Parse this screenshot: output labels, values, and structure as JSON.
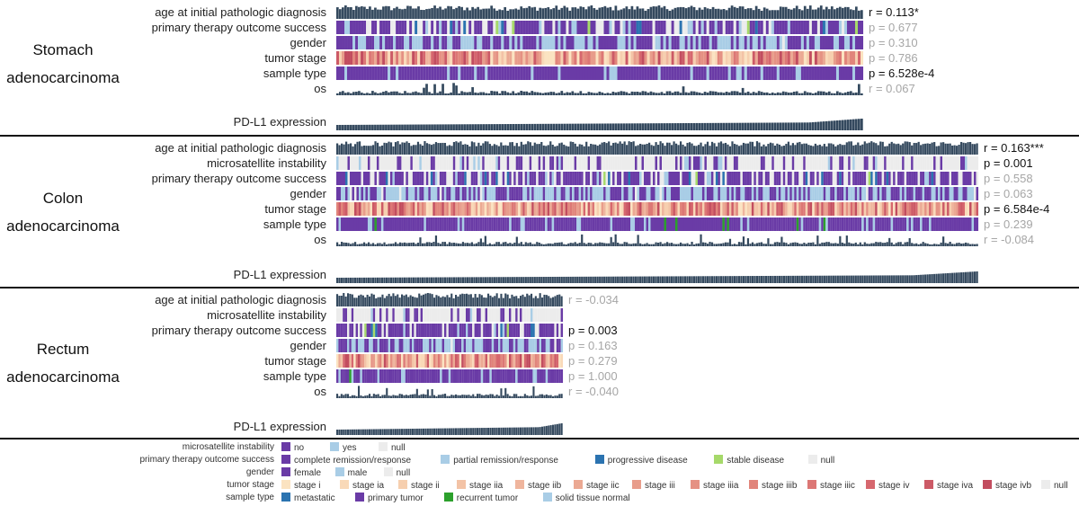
{
  "chart_data": {
    "type": "heatmap",
    "title": "",
    "panels": [
      {
        "cancer": [
          "Stomach",
          "adenocarcinoma"
        ],
        "tracks": [
          {
            "label": "age at initial pathologic diagnosis",
            "kind": "bar",
            "stat": "r = 0.113*",
            "significant": true
          },
          {
            "label": "primary therapy outcome success",
            "kind": "cat",
            "palette": "outcome",
            "stat": "p = 0.677",
            "significant": false
          },
          {
            "label": "gender",
            "kind": "cat",
            "palette": "gender",
            "stat": "p = 0.310",
            "significant": false
          },
          {
            "label": "tumor stage",
            "kind": "cat",
            "palette": "stage",
            "stat": "p = 0.786",
            "significant": false
          },
          {
            "label": "sample type",
            "kind": "cat",
            "palette": "sample",
            "stat": "p = 6.528e-4",
            "significant": true
          },
          {
            "label": "os",
            "kind": "os",
            "stat": "r = 0.067",
            "significant": false
          }
        ],
        "pdl1_label": "PD-L1 expression",
        "n_samples": 195
      },
      {
        "cancer": [
          "Colon",
          "adenocarcinoma"
        ],
        "tracks": [
          {
            "label": "age at initial pathologic diagnosis",
            "kind": "bar",
            "stat": "r = 0.163***",
            "significant": true
          },
          {
            "label": "microsatellite instability",
            "kind": "cat",
            "palette": "msi",
            "stat": "p = 0.001",
            "significant": true
          },
          {
            "label": "primary therapy outcome success",
            "kind": "cat",
            "palette": "outcome",
            "stat": "p = 0.558",
            "significant": false
          },
          {
            "label": "gender",
            "kind": "cat",
            "palette": "gender",
            "stat": "p = 0.063",
            "significant": false
          },
          {
            "label": "tumor stage",
            "kind": "cat",
            "palette": "stage",
            "stat": "p = 6.584e-4",
            "significant": true
          },
          {
            "label": "sample type",
            "kind": "cat",
            "palette": "sample",
            "stat": "p = 0.239",
            "significant": false
          },
          {
            "label": "os",
            "kind": "os",
            "stat": "r = -0.084",
            "significant": false
          }
        ],
        "pdl1_label": "PD-L1 expression",
        "n_samples": 286
      },
      {
        "cancer": [
          "Rectum",
          "adenocarcinoma"
        ],
        "tracks": [
          {
            "label": "age at initial pathologic diagnosis",
            "kind": "bar",
            "stat": "r = -0.034",
            "significant": false
          },
          {
            "label": "microsatellite instability",
            "kind": "cat",
            "palette": "msi",
            "stat": "",
            "significant": false
          },
          {
            "label": "primary therapy outcome success",
            "kind": "cat",
            "palette": "outcome",
            "stat": "p = 0.003",
            "significant": true
          },
          {
            "label": "gender",
            "kind": "cat",
            "palette": "gender",
            "stat": "p = 0.163",
            "significant": false
          },
          {
            "label": "tumor stage",
            "kind": "cat",
            "palette": "stage",
            "stat": "p = 0.279",
            "significant": false
          },
          {
            "label": "sample type",
            "kind": "cat",
            "palette": "sample",
            "stat": "p = 1.000",
            "significant": false
          },
          {
            "label": "os",
            "kind": "os",
            "stat": "r = -0.040",
            "significant": false
          }
        ],
        "pdl1_label": "PD-L1 expression",
        "n_samples": 105
      }
    ],
    "colors": {
      "bar": "#34495e",
      "null": "#ececec",
      "msi": {
        "no": "#6a3ba6",
        "yes": "#a9cde6",
        "null": "#ececec"
      },
      "outcome": {
        "complete remission/response": "#6a3ba6",
        "partial remission/response": "#a9cde6",
        "progressive disease": "#2b73b0",
        "stable disease": "#a6d96a",
        "null": "#ececec"
      },
      "gender": {
        "female": "#6a3ba6",
        "male": "#a9cde6",
        "null": "#ececec"
      },
      "stage": {
        "stage i": "#fbe3c1",
        "stage ia": "#f9d9b8",
        "stage ii": "#f6cfaf",
        "stage iia": "#f3c3a6",
        "stage iib": "#efb59d",
        "stage iic": "#eba993",
        "stage iii": "#e89d8b",
        "stage iiia": "#e59183",
        "stage iiib": "#e1857b",
        "stage iiic": "#dc7775",
        "stage iv": "#d6676e",
        "stage iva": "#cc5a66",
        "stage ivb": "#c24d5f",
        "null": "#ececec"
      },
      "sample": {
        "metastatic": "#2b73b0",
        "primary tumor": "#6a3ba6",
        "recurrent tumor": "#2ca02c",
        "solid tissue normal": "#a9cde6"
      }
    }
  },
  "legend": [
    {
      "title": "microsatellite instability",
      "items": [
        {
          "label": "no",
          "color": "#6a3ba6"
        },
        {
          "label": "yes",
          "color": "#a9cde6"
        },
        {
          "label": "null",
          "color": "#ececec"
        }
      ]
    },
    {
      "title": "primary therapy outcome success",
      "items": [
        {
          "label": "complete remission/response",
          "color": "#6a3ba6"
        },
        {
          "label": "partial remission/response",
          "color": "#a9cde6"
        },
        {
          "label": "progressive disease",
          "color": "#2b73b0"
        },
        {
          "label": "stable disease",
          "color": "#a6d96a"
        },
        {
          "label": "null",
          "color": "#ececec"
        }
      ]
    },
    {
      "title": "gender",
      "items": [
        {
          "label": "female",
          "color": "#6a3ba6"
        },
        {
          "label": "male",
          "color": "#a9cde6"
        },
        {
          "label": "null",
          "color": "#ececec"
        }
      ]
    },
    {
      "title": "tumor stage",
      "items": [
        {
          "label": "stage i",
          "color": "#fbe3c1"
        },
        {
          "label": "stage ia",
          "color": "#f9d9b8"
        },
        {
          "label": "stage ii",
          "color": "#f6cfaf"
        },
        {
          "label": "stage iia",
          "color": "#f3c3a6"
        },
        {
          "label": "stage iib",
          "color": "#efb59d"
        },
        {
          "label": "stage iic",
          "color": "#eba993"
        },
        {
          "label": "stage iii",
          "color": "#e89d8b"
        },
        {
          "label": "stage iiia",
          "color": "#e59183"
        },
        {
          "label": "stage iiib",
          "color": "#e1857b"
        },
        {
          "label": "stage iiic",
          "color": "#dc7775"
        },
        {
          "label": "stage iv",
          "color": "#d6676e"
        },
        {
          "label": "stage iva",
          "color": "#cc5a66"
        },
        {
          "label": "stage ivb",
          "color": "#c24d5f"
        },
        {
          "label": "null",
          "color": "#ececec"
        }
      ]
    },
    {
      "title": "sample type",
      "items": [
        {
          "label": "metastatic",
          "color": "#2b73b0"
        },
        {
          "label": "primary tumor",
          "color": "#6a3ba6"
        },
        {
          "label": "recurrent tumor",
          "color": "#2ca02c"
        },
        {
          "label": "solid tissue normal",
          "color": "#a9cde6"
        }
      ]
    }
  ]
}
